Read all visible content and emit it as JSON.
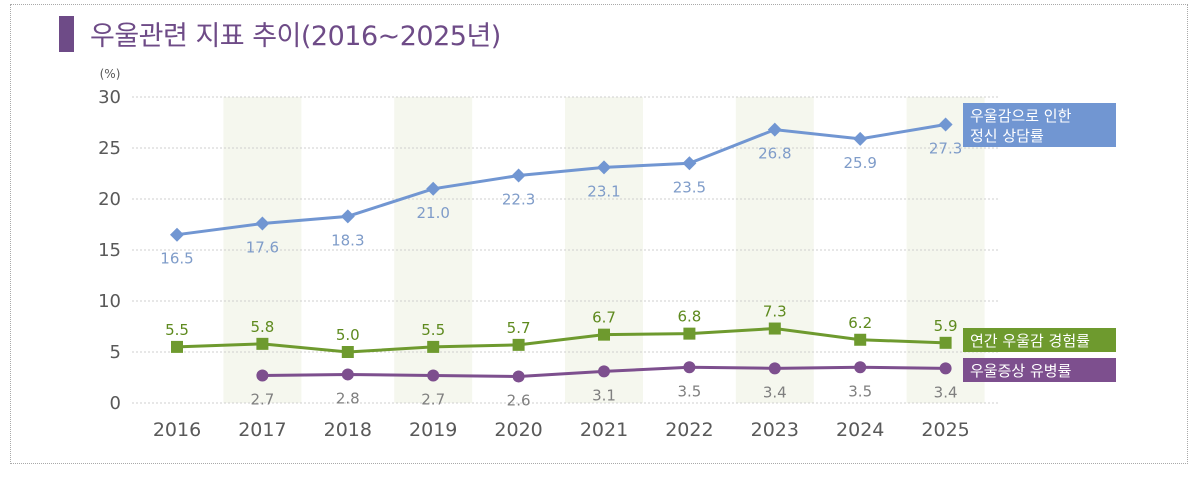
{
  "title": "우울관련 지표 추이(2016~2025년)",
  "chart_data": {
    "type": "line",
    "title": "우울관련 지표 추이(2016~2025년)",
    "unit": "(%)",
    "xlabel": "",
    "ylabel": "(%)",
    "ylim": [
      0,
      30
    ],
    "yticks": [
      0,
      5,
      10,
      15,
      20,
      25,
      30
    ],
    "categories": [
      "2016",
      "2017",
      "2018",
      "2019",
      "2020",
      "2021",
      "2022",
      "2023",
      "2024",
      "2025"
    ],
    "grid": true,
    "legend": "right",
    "series": [
      {
        "name": "우울감으로 인한 정신 상담률",
        "name_lines": [
          "우울감으로 인한",
          "정신 상담률"
        ],
        "marker": "diamond",
        "color": "#7196d2",
        "label_color": "#7f9cc9",
        "values": [
          16.5,
          17.6,
          18.3,
          21.0,
          22.3,
          23.1,
          23.5,
          26.8,
          25.9,
          27.3
        ],
        "value_labels": [
          "16.5",
          "17.6",
          "18.3",
          "21.0",
          "22.3",
          "23.1",
          "23.5",
          "26.8",
          "25.9",
          "27.3"
        ]
      },
      {
        "name": "연간 우울감 경험률",
        "name_lines": [
          "연간 우울감 경험률"
        ],
        "marker": "square",
        "color": "#6e9a2e",
        "label_color": "#5e8a1e",
        "values": [
          5.5,
          5.8,
          5.0,
          5.5,
          5.7,
          6.7,
          6.8,
          7.3,
          6.2,
          5.9
        ],
        "value_labels": [
          "5.5",
          "5.8",
          "5.0",
          "5.5",
          "5.7",
          "6.7",
          "6.8",
          "7.3",
          "6.2",
          "5.9"
        ]
      },
      {
        "name": "우울증상 유병률",
        "name_lines": [
          "우울증상 유병률"
        ],
        "marker": "circle",
        "color": "#7d4f8e",
        "label_color": "#7f7f7f",
        "values": [
          null,
          2.7,
          2.8,
          2.7,
          2.6,
          3.1,
          3.5,
          3.4,
          3.5,
          3.4
        ],
        "value_labels": [
          "",
          "2.7",
          "2.8",
          "2.7",
          "2.6",
          "3.1",
          "3.5",
          "3.4",
          "3.5",
          "3.4"
        ]
      }
    ]
  },
  "colors": {
    "title": "#6e4b87",
    "band": "#f5f7ee",
    "grid": "#cfcfcf",
    "axis_text": "#595959"
  }
}
